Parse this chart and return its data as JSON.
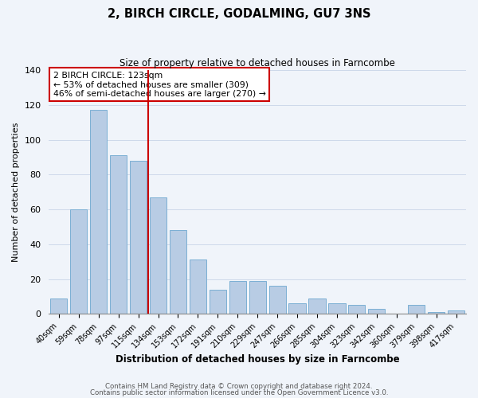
{
  "title": "2, BIRCH CIRCLE, GODALMING, GU7 3NS",
  "subtitle": "Size of property relative to detached houses in Farncombe",
  "xlabel": "Distribution of detached houses by size in Farncombe",
  "ylabel": "Number of detached properties",
  "categories": [
    "40sqm",
    "59sqm",
    "78sqm",
    "97sqm",
    "115sqm",
    "134sqm",
    "153sqm",
    "172sqm",
    "191sqm",
    "210sqm",
    "229sqm",
    "247sqm",
    "266sqm",
    "285sqm",
    "304sqm",
    "323sqm",
    "342sqm",
    "360sqm",
    "379sqm",
    "398sqm",
    "417sqm"
  ],
  "values": [
    9,
    60,
    117,
    91,
    88,
    67,
    48,
    31,
    14,
    19,
    19,
    16,
    6,
    9,
    6,
    5,
    3,
    0,
    5,
    1,
    2
  ],
  "bar_color": "#b8cce4",
  "bar_edge_color": "#7bafd4",
  "vline_x": 4.5,
  "vline_color": "#cc0000",
  "annotation_title": "2 BIRCH CIRCLE: 123sqm",
  "annotation_line1": "← 53% of detached houses are smaller (309)",
  "annotation_line2": "46% of semi-detached houses are larger (270) →",
  "annotation_box_color": "#ffffff",
  "annotation_box_edge_color": "#cc0000",
  "ylim": [
    0,
    140
  ],
  "yticks": [
    0,
    20,
    40,
    60,
    80,
    100,
    120,
    140
  ],
  "footnote1": "Contains HM Land Registry data © Crown copyright and database right 2024.",
  "footnote2": "Contains public sector information licensed under the Open Government Licence v3.0.",
  "bg_color": "#f0f4fa",
  "plot_bg_color": "#f0f4fa"
}
